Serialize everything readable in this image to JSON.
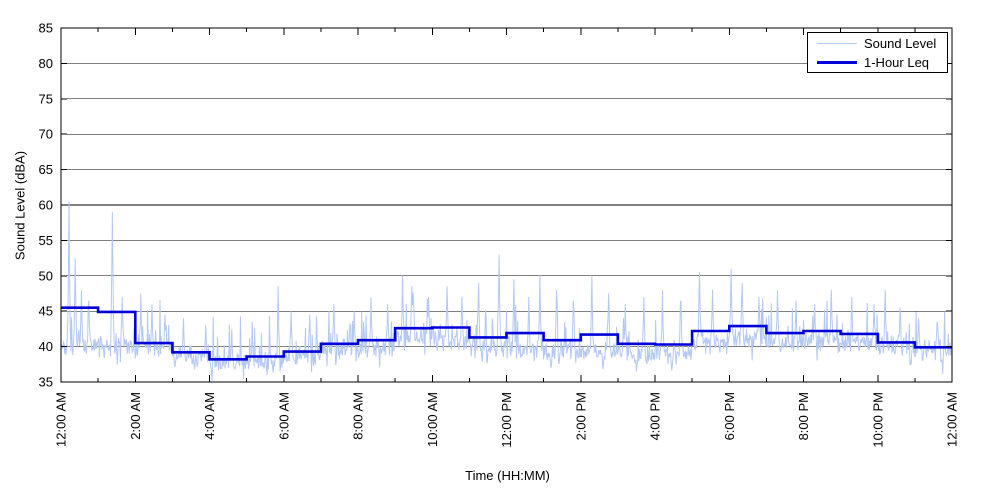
{
  "figure": {
    "background": "#ffffff",
    "axis_color": "#000000"
  },
  "chart_data": {
    "type": "line",
    "title": "",
    "xlabel": "Time (HH:MM)",
    "ylabel": "Sound Level (dBA)",
    "ylim": [
      35,
      85
    ],
    "xlim_hours": [
      0,
      24
    ],
    "grid": "horizontal-solid",
    "legend_position": "top-right",
    "y_ticks": [
      35,
      40,
      45,
      50,
      55,
      60,
      65,
      70,
      75,
      80,
      85
    ],
    "x_tick_hours": [
      0,
      2,
      4,
      6,
      8,
      10,
      12,
      14,
      16,
      18,
      20,
      22,
      24
    ],
    "x_minor_tick_every_hours": 1,
    "x_tick_labels": [
      "12:00 AM",
      "2:00 AM",
      "4:00 AM",
      "6:00 AM",
      "8:00 AM",
      "10:00 AM",
      "12:00 PM",
      "2:00 PM",
      "4:00 PM",
      "6:00 PM",
      "8:00 PM",
      "10:00 PM",
      "12:00 AM"
    ],
    "series": [
      {
        "name": "Sound Level",
        "color": "#b4c8f2",
        "line_width": 1,
        "sampling": "1-minute noisy trace",
        "model": {
          "seed": 42,
          "noise_amplitude_db": 2.4,
          "baseline_by_hour": [
            40.2,
            40.0,
            39.6,
            38.4,
            37.9,
            38.0,
            38.7,
            39.4,
            39.8,
            41.3,
            41.0,
            39.8,
            39.4,
            39.3,
            39.2,
            39.0,
            39.2,
            40.4,
            41.0,
            40.4,
            40.7,
            40.4,
            39.7,
            39.4
          ],
          "spikes": [
            [
              0.22,
              60.5
            ],
            [
              0.38,
              52.5
            ],
            [
              0.55,
              48.0
            ],
            [
              0.75,
              46.5
            ],
            [
              1.38,
              59.0
            ],
            [
              1.65,
              47.0
            ],
            [
              2.15,
              47.5
            ],
            [
              2.45,
              46.0
            ],
            [
              2.8,
              44.5
            ],
            [
              3.3,
              44.0
            ],
            [
              3.6,
              36.8
            ],
            [
              3.9,
              43.0
            ],
            [
              4.3,
              36.9
            ],
            [
              4.6,
              42.5
            ],
            [
              5.15,
              43.5
            ],
            [
              5.85,
              48.5
            ],
            [
              6.2,
              45.0
            ],
            [
              6.7,
              44.5
            ],
            [
              7.35,
              46.0
            ],
            [
              7.9,
              45.0
            ],
            [
              8.35,
              47.0
            ],
            [
              8.8,
              46.0
            ],
            [
              9.2,
              50.0
            ],
            [
              9.45,
              48.5
            ],
            [
              9.9,
              47.0
            ],
            [
              10.4,
              48.5
            ],
            [
              10.8,
              47.0
            ],
            [
              11.25,
              49.0
            ],
            [
              11.8,
              53.0
            ],
            [
              12.2,
              49.5
            ],
            [
              12.6,
              47.0
            ],
            [
              12.9,
              50.0
            ],
            [
              13.2,
              37.0
            ],
            [
              13.35,
              48.0
            ],
            [
              13.8,
              46.5
            ],
            [
              14.3,
              50.0
            ],
            [
              14.6,
              36.8
            ],
            [
              14.75,
              47.5
            ],
            [
              15.2,
              46.0
            ],
            [
              15.5,
              36.5
            ],
            [
              15.7,
              47.0
            ],
            [
              16.2,
              48.0
            ],
            [
              16.45,
              36.6
            ],
            [
              16.7,
              46.5
            ],
            [
              17.2,
              50.5
            ],
            [
              17.55,
              48.0
            ],
            [
              18.05,
              51.0
            ],
            [
              18.35,
              49.0
            ],
            [
              18.8,
              47.0
            ],
            [
              19.3,
              48.0
            ],
            [
              19.8,
              46.5
            ],
            [
              20.3,
              46.0
            ],
            [
              20.75,
              48.0
            ],
            [
              21.3,
              47.0
            ],
            [
              21.9,
              46.0
            ],
            [
              22.2,
              48.0
            ],
            [
              22.6,
              45.5
            ],
            [
              22.9,
              37.5
            ],
            [
              23.1,
              44.0
            ],
            [
              23.6,
              43.5
            ]
          ]
        }
      },
      {
        "name": "1-Hour Leq",
        "color": "#0000d8",
        "line_width": 2.6,
        "step": "hourly",
        "values": [
          45.5,
          44.9,
          40.5,
          39.2,
          38.2,
          38.6,
          39.3,
          40.4,
          40.9,
          42.6,
          42.7,
          41.3,
          41.9,
          40.9,
          41.7,
          40.4,
          40.3,
          42.2,
          42.9,
          41.9,
          42.2,
          41.8,
          40.6,
          39.9
        ]
      }
    ]
  }
}
